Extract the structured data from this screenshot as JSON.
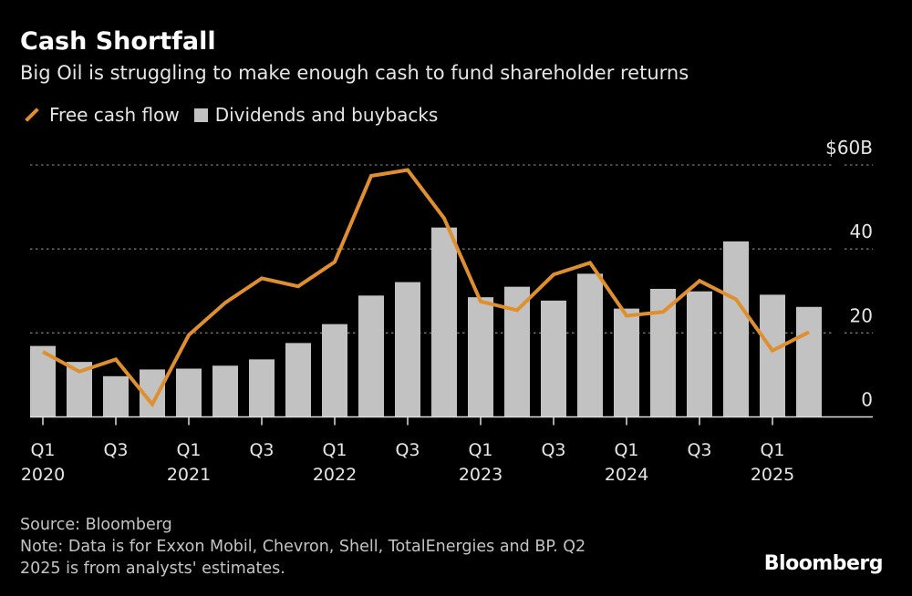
{
  "title": "Cash Shortfall",
  "subtitle": "Big Oil is struggling to make enough cash to fund shareholder returns",
  "footer": {
    "source": "Source: Bloomberg",
    "note_line1": "Note: Data is for Exxon Mobil, Chevron, Shell, TotalEnergies and BP. Q2",
    "note_line2": "2025 is from analysts' estimates.",
    "logo": "Bloomberg"
  },
  "chart_data": {
    "type": "bar+line",
    "title": "Cash Shortfall",
    "legend_position": "top-left",
    "grid": true,
    "ylim": [
      0,
      60
    ],
    "y_ticks": [
      {
        "value": 0,
        "label": "0"
      },
      {
        "value": 20,
        "label": "20"
      },
      {
        "value": 40,
        "label": "40"
      },
      {
        "value": 60,
        "label": "$60B"
      }
    ],
    "categories": [
      "Q1 2020",
      "Q2 2020",
      "Q3 2020",
      "Q4 2020",
      "Q1 2021",
      "Q2 2021",
      "Q3 2021",
      "Q4 2021",
      "Q1 2022",
      "Q2 2022",
      "Q3 2022",
      "Q4 2022",
      "Q1 2023",
      "Q2 2023",
      "Q3 2023",
      "Q4 2023",
      "Q1 2024",
      "Q2 2024",
      "Q3 2024",
      "Q4 2024",
      "Q1 2025",
      "Q2 2025"
    ],
    "x_tick_labels": [
      {
        "index": 0,
        "q": "Q1",
        "year": "2020"
      },
      {
        "index": 2,
        "q": "Q3",
        "year": ""
      },
      {
        "index": 4,
        "q": "Q1",
        "year": "2021"
      },
      {
        "index": 6,
        "q": "Q3",
        "year": ""
      },
      {
        "index": 8,
        "q": "Q1",
        "year": "2022"
      },
      {
        "index": 10,
        "q": "Q3",
        "year": ""
      },
      {
        "index": 12,
        "q": "Q1",
        "year": "2023"
      },
      {
        "index": 14,
        "q": "Q3",
        "year": ""
      },
      {
        "index": 16,
        "q": "Q1",
        "year": "2024"
      },
      {
        "index": 18,
        "q": "Q3",
        "year": ""
      },
      {
        "index": 20,
        "q": "Q1",
        "year": "2025"
      }
    ],
    "series": [
      {
        "name": "Free cash flow",
        "type": "line",
        "color": "#e08f2e",
        "values": [
          15.5,
          10.8,
          13.7,
          3.0,
          19.5,
          27.2,
          33.0,
          31.1,
          36.9,
          57.4,
          58.8,
          47.3,
          27.5,
          25.4,
          33.9,
          36.7,
          24.1,
          25.0,
          32.4,
          28.0,
          15.8,
          20.2
        ]
      },
      {
        "name": "Dividends and buybacks",
        "type": "bar",
        "color": "#c2c2c2",
        "values": [
          16.9,
          13.1,
          9.7,
          11.3,
          11.5,
          12.2,
          13.7,
          17.6,
          22.1,
          28.9,
          32.1,
          45.1,
          28.5,
          31.0,
          27.7,
          34.1,
          25.8,
          30.5,
          29.9,
          41.8,
          29.1,
          26.2
        ]
      }
    ]
  }
}
